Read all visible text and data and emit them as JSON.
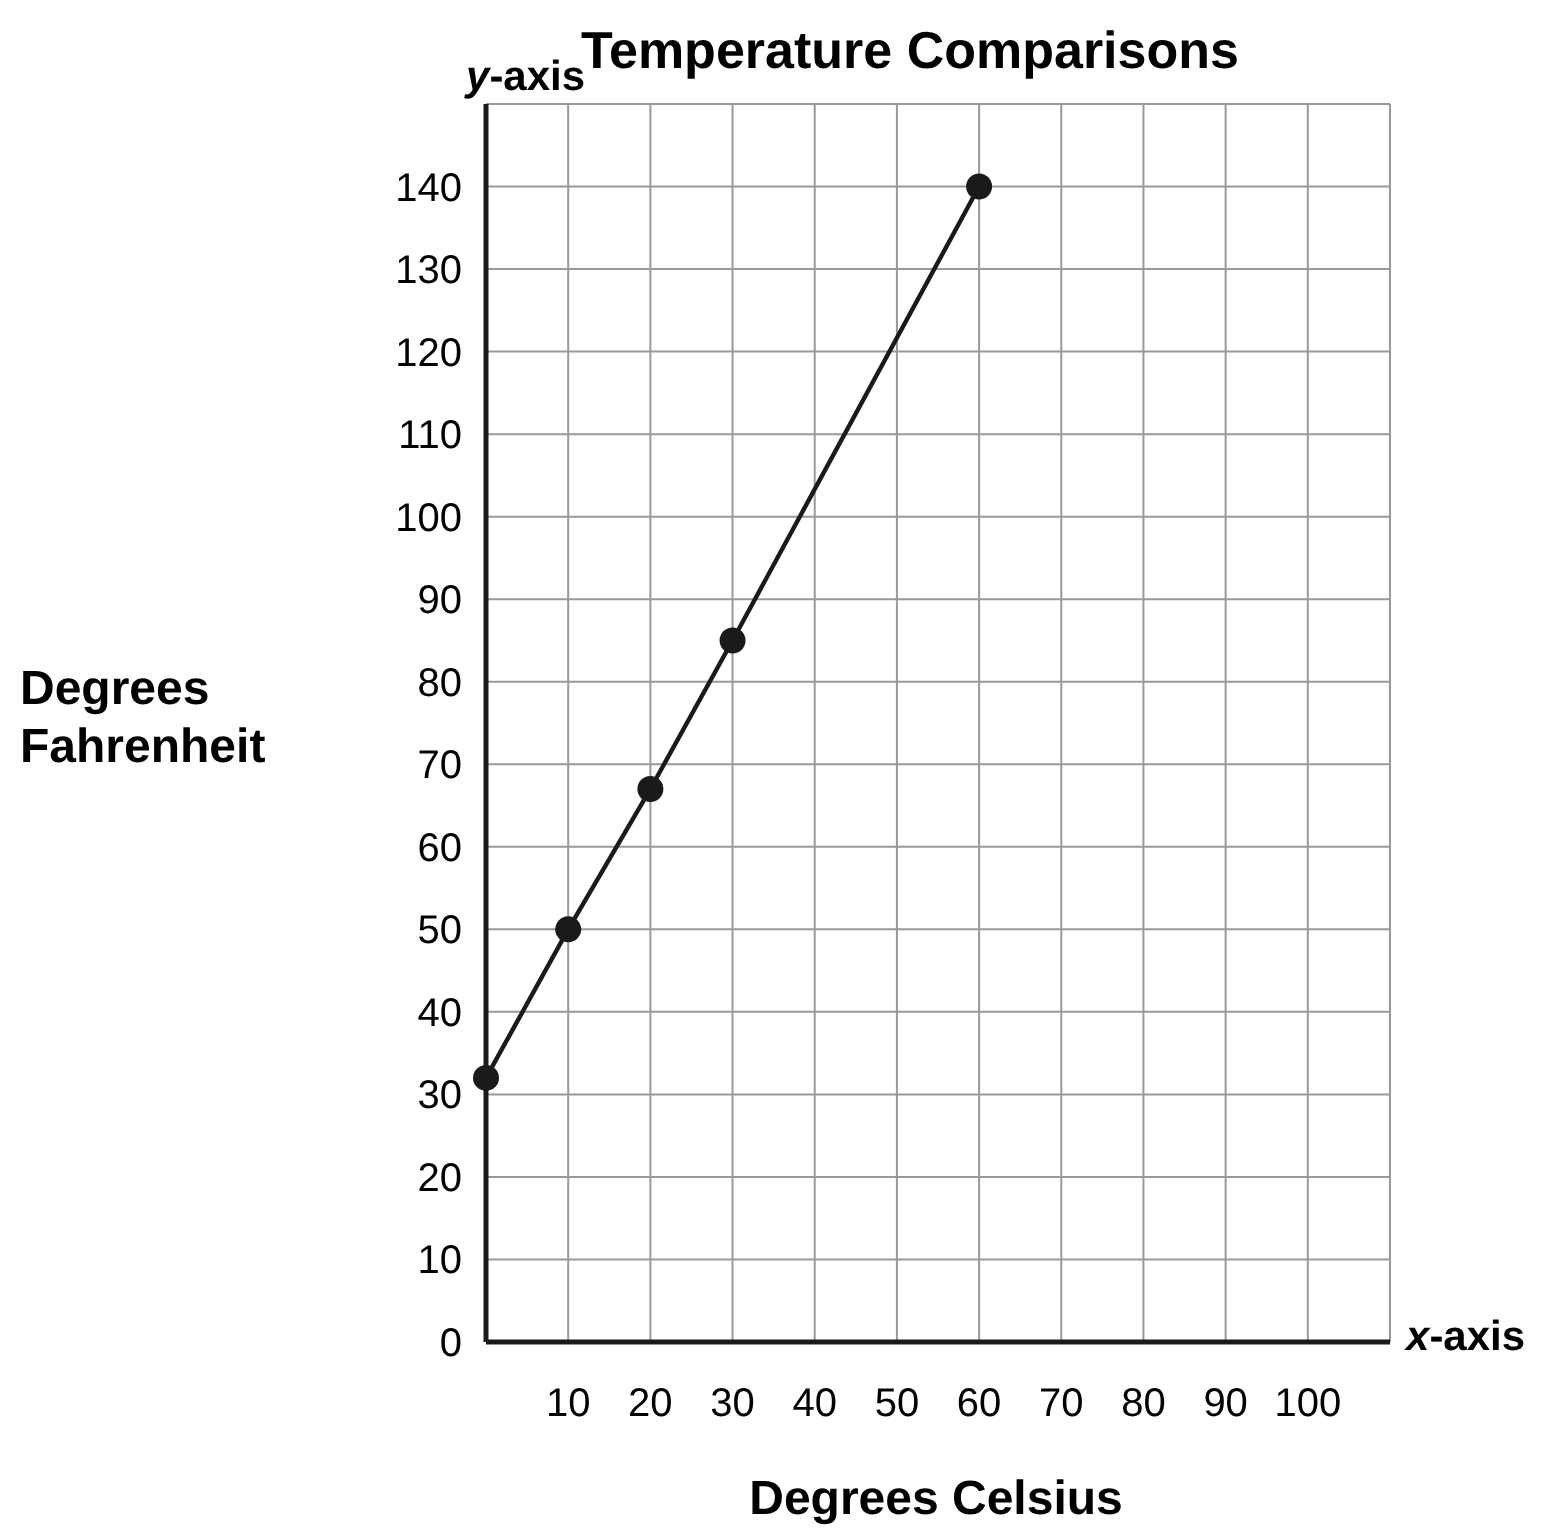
{
  "chart_data": {
    "type": "line",
    "title": "Temperature Comparisons",
    "xlabel": "Degrees Celsius",
    "ylabel": "Degrees Fahrenheit",
    "annotations": [
      "y-axis",
      "x-axis"
    ],
    "x": [
      0,
      10,
      20,
      30,
      60
    ],
    "series": [
      {
        "color": "#1a1a1a",
        "values": [
          32,
          50,
          67,
          85,
          140
        ]
      }
    ],
    "xlim": [
      0,
      110
    ],
    "ylim": [
      0,
      150
    ],
    "xticks": [
      10,
      20,
      30,
      40,
      50,
      60,
      70,
      80,
      90,
      100,
      {
        "value": 110,
        "label": null
      }
    ],
    "yticks": [
      0,
      10,
      20,
      30,
      40,
      50,
      60,
      70,
      80,
      90,
      100,
      110,
      120,
      130,
      140,
      {
        "value": 150,
        "label": null
      }
    ],
    "grid": true,
    "marker": "circle",
    "line_style": "solid"
  }
}
